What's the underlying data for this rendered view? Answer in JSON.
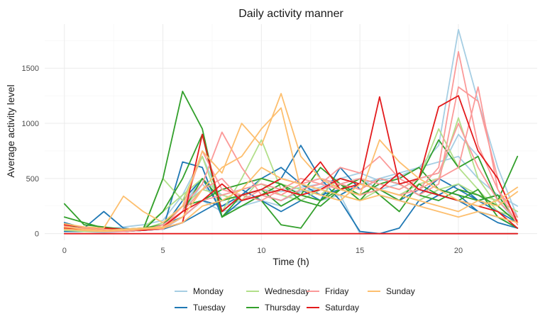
{
  "chart_data": {
    "type": "line",
    "title": "Daily activity manner",
    "xlabel": "Time (h)",
    "ylabel": "Average activity level",
    "xlim": [
      -1,
      24
    ],
    "ylim": [
      -60,
      1900
    ],
    "x_ticks": [
      0,
      5,
      10,
      15,
      20
    ],
    "y_ticks": [
      0,
      500,
      1000,
      1500
    ],
    "grid": true,
    "legend_position": "bottom",
    "x": [
      0,
      1,
      2,
      3,
      4,
      5,
      6,
      7,
      8,
      9,
      10,
      11,
      12,
      13,
      14,
      15,
      16,
      17,
      18,
      19,
      20,
      21,
      22,
      23
    ],
    "series": [
      {
        "name": "Monday",
        "color": "#a6cee3",
        "lines": [
          [
            50,
            30,
            40,
            60,
            80,
            120,
            350,
            700,
            300,
            350,
            400,
            380,
            420,
            450,
            500,
            550,
            480,
            520,
            600,
            800,
            1850,
            1200,
            600,
            150
          ],
          [
            20,
            20,
            30,
            40,
            30,
            60,
            200,
            450,
            250,
            300,
            350,
            300,
            380,
            400,
            450,
            500,
            400,
            450,
            500,
            550,
            900,
            700,
            300,
            100
          ],
          [
            30,
            20,
            10,
            20,
            30,
            40,
            150,
            300,
            200,
            250,
            300,
            250,
            350,
            300,
            350,
            0,
            0,
            0,
            0,
            0,
            0,
            0,
            0,
            0
          ],
          [
            80,
            40,
            30,
            30,
            50,
            80,
            250,
            500,
            350,
            400,
            450,
            400,
            380,
            420,
            500,
            450,
            500,
            550,
            600,
            650,
            700,
            500,
            350,
            250
          ]
        ]
      },
      {
        "name": "Tuesday",
        "color": "#1f78b4",
        "lines": [
          [
            60,
            50,
            200,
            50,
            30,
            40,
            650,
            600,
            150,
            300,
            350,
            300,
            400,
            300,
            600,
            400,
            500,
            450,
            350,
            500,
            400,
            300,
            200,
            100
          ],
          [
            40,
            30,
            20,
            20,
            30,
            50,
            300,
            500,
            200,
            350,
            400,
            500,
            800,
            500,
            300,
            20,
            0,
            50,
            300,
            400,
            350,
            200,
            100,
            50
          ],
          [
            100,
            50,
            30,
            40,
            50,
            80,
            150,
            300,
            250,
            350,
            500,
            600,
            450,
            350,
            400,
            500,
            350,
            300,
            400,
            350,
            450,
            300,
            350,
            100
          ],
          [
            20,
            20,
            20,
            20,
            30,
            40,
            100,
            200,
            300,
            400,
            300,
            200,
            300,
            400,
            350,
            450,
            400,
            300,
            250,
            350,
            300,
            200,
            150,
            50
          ]
        ]
      },
      {
        "name": "Wednesday",
        "color": "#b2df8a",
        "lines": [
          [
            40,
            30,
            20,
            30,
            40,
            500,
            300,
            700,
            200,
            500,
            850,
            400,
            350,
            300,
            400,
            500,
            450,
            400,
            500,
            950,
            600,
            400,
            200,
            150
          ],
          [
            30,
            20,
            20,
            30,
            50,
            200,
            350,
            500,
            300,
            400,
            450,
            350,
            300,
            400,
            350,
            300,
            400,
            350,
            450,
            500,
            1050,
            500,
            250,
            100
          ],
          [
            50,
            40,
            30,
            30,
            40,
            100,
            250,
            400,
            350,
            300,
            500,
            450,
            400,
            350,
            500,
            450,
            400,
            350,
            300,
            400,
            450,
            350,
            300,
            200
          ]
        ]
      },
      {
        "name": "Thursday",
        "color": "#33a02c",
        "lines": [
          [
            270,
            80,
            60,
            40,
            40,
            500,
            1290,
            950,
            150,
            350,
            400,
            250,
            350,
            300,
            450,
            350,
            400,
            300,
            500,
            850,
            600,
            700,
            300,
            700
          ],
          [
            150,
            100,
            50,
            40,
            50,
            80,
            250,
            300,
            400,
            450,
            500,
            450,
            350,
            600,
            450,
            300,
            500,
            450,
            350,
            300,
            400,
            350,
            250,
            100
          ],
          [
            60,
            40,
            30,
            30,
            40,
            60,
            200,
            500,
            300,
            350,
            300,
            80,
            50,
            300,
            400,
            500,
            350,
            200,
            450,
            350,
            300,
            400,
            150,
            50
          ],
          [
            80,
            40,
            20,
            20,
            30,
            200,
            500,
            900,
            150,
            250,
            350,
            450,
            300,
            250,
            400,
            350,
            450,
            500,
            600,
            400,
            350,
            300,
            350,
            100
          ]
        ]
      },
      {
        "name": "Friday",
        "color": "#fb9a99",
        "lines": [
          [
            70,
            40,
            30,
            30,
            40,
            60,
            250,
            450,
            920,
            600,
            350,
            300,
            400,
            450,
            600,
            550,
            700,
            500,
            400,
            600,
            1650,
            800,
            400,
            150
          ],
          [
            50,
            30,
            20,
            20,
            30,
            80,
            200,
            400,
            500,
            300,
            400,
            350,
            450,
            500,
            450,
            400,
            500,
            450,
            350,
            450,
            1330,
            1200,
            500,
            100
          ],
          [
            40,
            30,
            20,
            20,
            40,
            50,
            150,
            300,
            350,
            400,
            450,
            400,
            500,
            450,
            400,
            350,
            400,
            350,
            400,
            500,
            600,
            1330,
            400,
            80
          ],
          [
            60,
            50,
            40,
            30,
            30,
            40,
            200,
            750,
            400,
            350,
            300,
            400,
            350,
            400,
            450,
            500,
            450,
            400,
            500,
            550,
            1000,
            600,
            300,
            120
          ]
        ]
      },
      {
        "name": "Saturday",
        "color": "#e31a1c",
        "lines": [
          [
            80,
            60,
            50,
            40,
            30,
            50,
            100,
            900,
            200,
            350,
            400,
            500,
            450,
            650,
            400,
            450,
            1240,
            450,
            500,
            1150,
            1250,
            750,
            500,
            100
          ],
          [
            0,
            0,
            0,
            0,
            0,
            0,
            0,
            0,
            0,
            0,
            0,
            0,
            0,
            0,
            0,
            0,
            0,
            0,
            0,
            0,
            0,
            0,
            0,
            0
          ],
          [
            50,
            40,
            30,
            30,
            40,
            60,
            200,
            300,
            450,
            300,
            350,
            400,
            350,
            400,
            500,
            450,
            400,
            550,
            400,
            350,
            300,
            250,
            200,
            50
          ]
        ]
      },
      {
        "name": "Sunday",
        "color": "#fdbf6f",
        "lines": [
          [
            90,
            60,
            50,
            340,
            200,
            100,
            250,
            750,
            550,
            1000,
            800,
            1270,
            700,
            500,
            400,
            350,
            850,
            650,
            500,
            400,
            300,
            250,
            300,
            420
          ],
          [
            60,
            40,
            30,
            40,
            50,
            60,
            150,
            400,
            600,
            700,
            950,
            1140,
            400,
            350,
            300,
            450,
            400,
            350,
            300,
            250,
            200,
            300,
            250,
            380
          ],
          [
            40,
            30,
            20,
            30,
            40,
            50,
            100,
            250,
            300,
            400,
            600,
            500,
            450,
            400,
            350,
            300,
            350,
            300,
            250,
            200,
            150,
            200,
            150,
            100
          ]
        ]
      }
    ]
  }
}
